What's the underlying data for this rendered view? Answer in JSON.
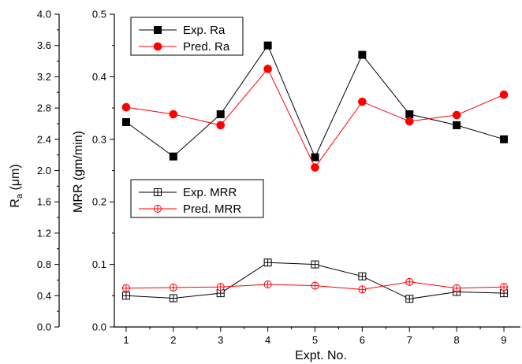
{
  "chart_data": {
    "type": "line",
    "x": [
      1,
      2,
      3,
      4,
      5,
      6,
      7,
      8,
      9
    ],
    "xlabel": "Expt. No.",
    "xlim": [
      0.75,
      9.35
    ],
    "left_axis": {
      "label_main": "R",
      "label_sub": "a",
      "label_unit": " (μm)",
      "ylim": [
        0.0,
        4.0
      ],
      "ticks": [
        "0.0",
        "0.4",
        "0.8",
        "1.2",
        "1.6",
        "2.0",
        "2.4",
        "2.8",
        "3.2",
        "3.6",
        "4.0"
      ]
    },
    "right_axis": {
      "label": "MRR (gm/min)",
      "ylim": [
        0.0,
        0.5
      ],
      "ticks": [
        "0.0",
        "0.1",
        "0.2",
        "0.3",
        "0.4",
        "0.5"
      ]
    },
    "series": [
      {
        "name": "Exp. Ra",
        "axis": "left",
        "color": "#000000",
        "marker": "filled-square",
        "values": [
          2.62,
          2.18,
          2.72,
          3.6,
          2.17,
          3.48,
          2.72,
          2.58,
          2.4
        ]
      },
      {
        "name": "Pred. Ra",
        "axis": "left",
        "color": "#ff0000",
        "marker": "filled-circle",
        "values": [
          2.81,
          2.72,
          2.58,
          3.3,
          2.04,
          2.88,
          2.63,
          2.71,
          2.97
        ]
      },
      {
        "name": "Exp. MRR",
        "axis": "right",
        "color": "#000000",
        "marker": "open-square-cross",
        "values": [
          0.05,
          0.046,
          0.054,
          0.103,
          0.1,
          0.081,
          0.045,
          0.056,
          0.054
        ]
      },
      {
        "name": "Pred. MRR",
        "axis": "right",
        "color": "#ff0000",
        "marker": "open-circle-cross",
        "values": [
          0.062,
          0.063,
          0.064,
          0.068,
          0.066,
          0.06,
          0.072,
          0.062,
          0.064
        ]
      }
    ],
    "legends": [
      {
        "position": "top-left",
        "entries": [
          "Exp. Ra",
          "Pred. Ra"
        ]
      },
      {
        "position": "middle-left",
        "entries": [
          "Exp. MRR",
          "Pred. MRR"
        ]
      }
    ]
  }
}
